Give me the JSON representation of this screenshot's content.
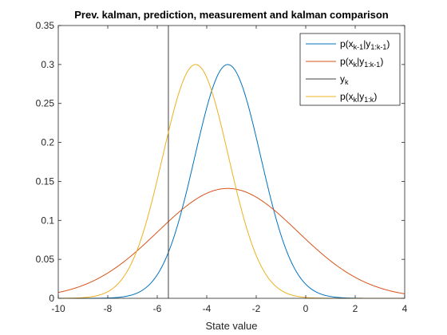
{
  "chart_data": {
    "type": "line",
    "title": "Prev. kalman, prediction, measurement and kalman comparison",
    "xlabel": "State value",
    "ylabel": "",
    "xlim": [
      -10,
      4
    ],
    "ylim": [
      0,
      0.35
    ],
    "xticks": [
      "-10",
      "-8",
      "-6",
      "-4",
      "-2",
      "0",
      "2",
      "4"
    ],
    "yticks": [
      "0",
      "0.05",
      "0.1",
      "0.15",
      "0.2",
      "0.25",
      "0.3",
      "0.35"
    ],
    "grid": false,
    "legend_position": "top-right",
    "series": [
      {
        "name": "p(x_{k-1}|y_{1:k-1})",
        "legend": {
          "base": "p(x",
          "sub1": "k-1",
          "mid": "|y",
          "sub2": "1:k-1",
          "end": ")"
        },
        "color": "#0072BD",
        "distribution": {
          "kind": "gaussian",
          "mean": -3.15,
          "std": 1.33
        }
      },
      {
        "name": "p(x_k|y_{1:k-1})",
        "legend": {
          "base": "p(x",
          "sub1": "k",
          "mid": "|y",
          "sub2": "1:k-1",
          "end": ")"
        },
        "color": "#D95319",
        "distribution": {
          "kind": "gaussian",
          "mean": -3.15,
          "std": 2.83
        }
      },
      {
        "name": "y_k",
        "legend": {
          "base": "y",
          "sub1": "k",
          "mid": "",
          "sub2": "",
          "end": ""
        },
        "color": "#404040",
        "distribution": {
          "kind": "vline",
          "x": -5.55
        }
      },
      {
        "name": "p(x_k|y_{1:k})",
        "legend": {
          "base": "p(x",
          "sub1": "k",
          "mid": "|y",
          "sub2": "1:k",
          "end": ")"
        },
        "color": "#EDB120",
        "distribution": {
          "kind": "gaussian",
          "mean": -4.45,
          "std": 1.33
        }
      }
    ]
  }
}
